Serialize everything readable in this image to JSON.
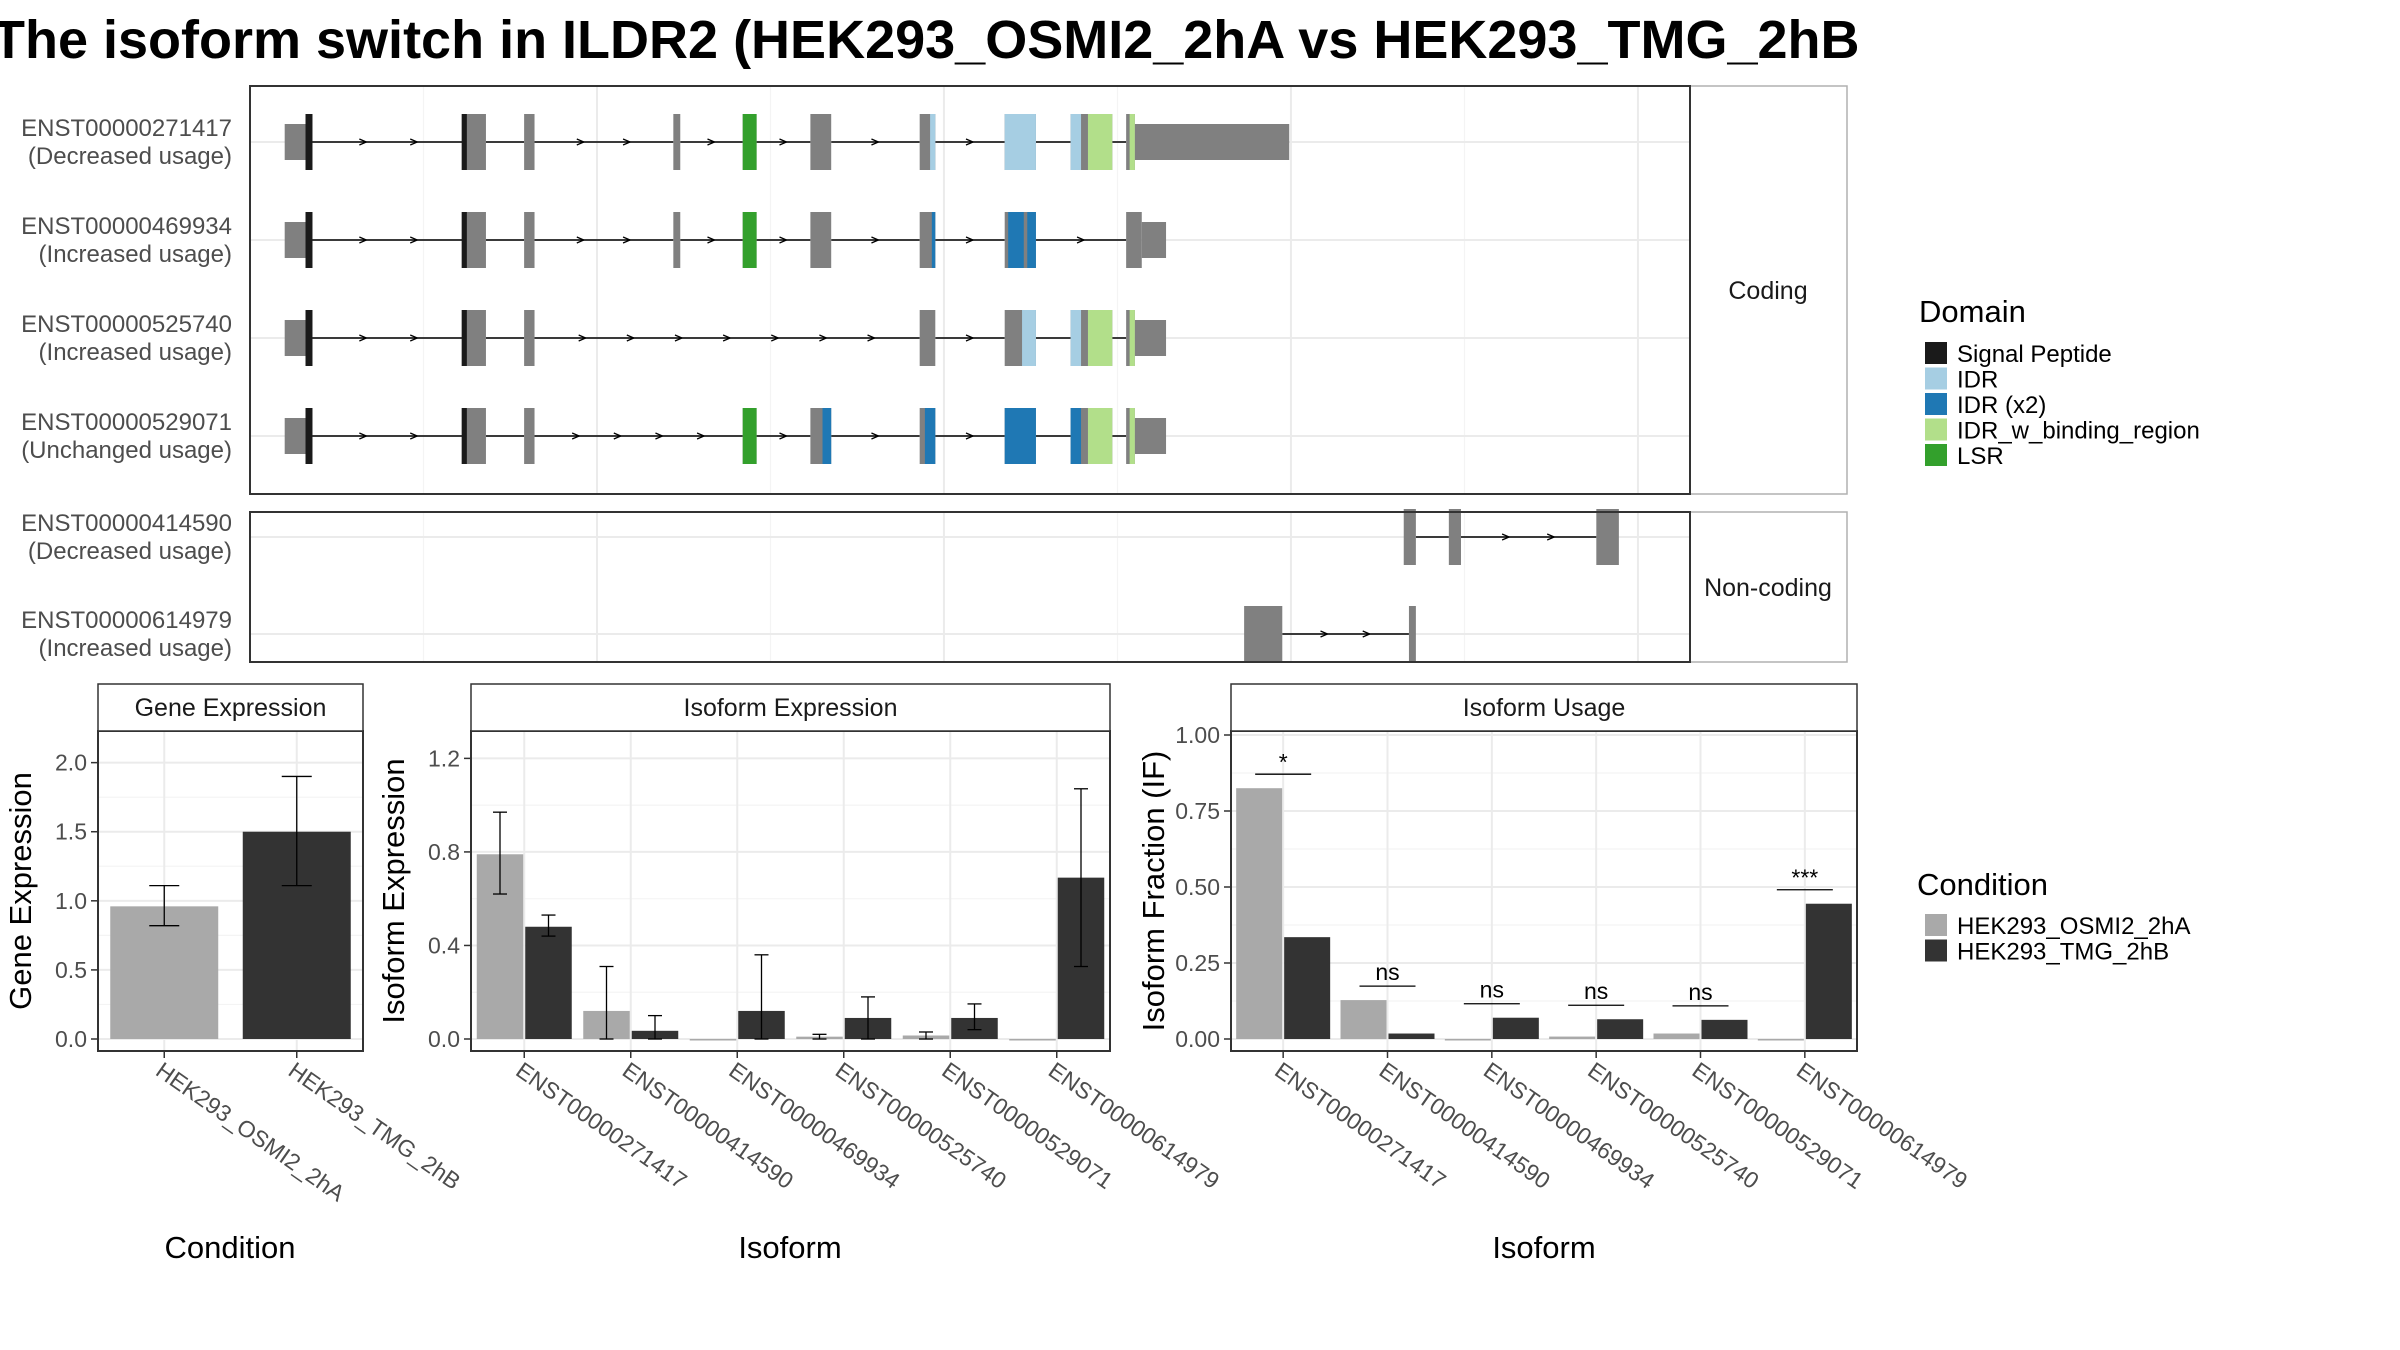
{
  "title": "The isoform switch in ILDR2 (HEK293_OSMI2_2hA vs HEK293_TMG_2hB",
  "colors": {
    "exon": "#808080",
    "intron": "#000000",
    "Signal Peptide": "#1a1a1a",
    "IDR": "#a6cee3",
    "IDR (x2)": "#1f78b4",
    "IDR_w_binding_region": "#b2df8a",
    "LSR": "#33a02c",
    "HEK293_OSMI2_2hA": "#a9a9a9",
    "HEK293_TMG_2hB": "#333333"
  },
  "structure": {
    "facets": [
      {
        "label": "Coding",
        "transcripts": [
          {
            "id": "ENST00000271417",
            "usage": "(Decreased usage)",
            "span": [
              2,
              57
            ],
            "exons": [
              [
                2,
                3.2,
                "utr"
              ],
              [
                3.2,
                3.6,
                "cds"
              ],
              [
                12.4,
                13.6,
                "cds"
              ],
              [
                15.8,
                16.4,
                "cds"
              ],
              [
                24.4,
                24.8,
                "cds"
              ],
              [
                28.4,
                29.2,
                "cds"
              ],
              [
                32.3,
                33.5,
                "cds"
              ],
              [
                38.6,
                39.5,
                "cds"
              ],
              [
                43.5,
                45.3,
                "cds"
              ],
              [
                47.3,
                48.3,
                "cds"
              ],
              [
                48.3,
                49.7,
                "cds"
              ],
              [
                50.5,
                51,
                "cds"
              ],
              [
                51,
                59.9,
                "utr"
              ]
            ],
            "domains": [
              [
                3.2,
                3.6,
                "Signal Peptide"
              ],
              [
                12.2,
                12.5,
                "Signal Peptide"
              ],
              [
                28.4,
                29.2,
                "LSR"
              ],
              [
                39.2,
                39.5,
                "IDR"
              ],
              [
                43.5,
                45.3,
                "IDR"
              ],
              [
                47.3,
                47.9,
                "IDR"
              ],
              [
                48.3,
                49.7,
                "IDR_w_binding_region"
              ],
              [
                50.7,
                51,
                "IDR_w_binding_region"
              ]
            ]
          },
          {
            "id": "ENST00000469934",
            "usage": "(Increased usage)",
            "span": [
              2,
              51
            ],
            "exons": [
              [
                2,
                3.2,
                "utr"
              ],
              [
                3.2,
                3.6,
                "cds"
              ],
              [
                12.4,
                13.6,
                "cds"
              ],
              [
                15.8,
                16.4,
                "cds"
              ],
              [
                24.4,
                24.8,
                "cds"
              ],
              [
                28.4,
                29.2,
                "cds"
              ],
              [
                32.3,
                33.5,
                "cds"
              ],
              [
                38.6,
                39.5,
                "cds"
              ],
              [
                43.5,
                45.3,
                "cds"
              ],
              [
                50.5,
                51.4,
                "cds"
              ],
              [
                51.4,
                52.8,
                "utr"
              ]
            ],
            "domains": [
              [
                3.2,
                3.6,
                "Signal Peptide"
              ],
              [
                12.2,
                12.5,
                "Signal Peptide"
              ],
              [
                28.4,
                29.2,
                "LSR"
              ],
              [
                39.3,
                39.5,
                "IDR (x2)"
              ],
              [
                43.7,
                44.6,
                "IDR (x2)"
              ],
              [
                44.8,
                45.3,
                "IDR (x2)"
              ]
            ]
          },
          {
            "id": "ENST00000525740",
            "usage": "(Increased usage)",
            "span": [
              2,
              51
            ],
            "exons": [
              [
                2,
                3.2,
                "utr"
              ],
              [
                3.2,
                3.6,
                "cds"
              ],
              [
                12.4,
                13.6,
                "cds"
              ],
              [
                15.8,
                16.4,
                "cds"
              ],
              [
                38.6,
                39.5,
                "cds"
              ],
              [
                43.5,
                45.3,
                "cds"
              ],
              [
                47.3,
                48.3,
                "cds"
              ],
              [
                48.3,
                49.7,
                "cds"
              ],
              [
                50.5,
                51,
                "cds"
              ],
              [
                51,
                52.8,
                "utr"
              ]
            ],
            "domains": [
              [
                3.2,
                3.6,
                "Signal Peptide"
              ],
              [
                12.2,
                12.5,
                "Signal Peptide"
              ],
              [
                44.5,
                45.3,
                "IDR"
              ],
              [
                47.3,
                47.9,
                "IDR"
              ],
              [
                48.3,
                49.7,
                "IDR_w_binding_region"
              ],
              [
                50.7,
                51,
                "IDR_w_binding_region"
              ]
            ]
          },
          {
            "id": "ENST00000529071",
            "usage": "(Unchanged usage)",
            "span": [
              2,
              51
            ],
            "exons": [
              [
                2,
                3.2,
                "utr"
              ],
              [
                3.2,
                3.6,
                "cds"
              ],
              [
                12.4,
                13.6,
                "cds"
              ],
              [
                15.8,
                16.4,
                "cds"
              ],
              [
                28.4,
                29.2,
                "cds"
              ],
              [
                32.3,
                33.5,
                "cds"
              ],
              [
                38.6,
                39.5,
                "cds"
              ],
              [
                43.5,
                45.3,
                "cds"
              ],
              [
                47.3,
                48.3,
                "cds"
              ],
              [
                48.3,
                49.7,
                "cds"
              ],
              [
                50.5,
                51,
                "cds"
              ],
              [
                51,
                52.8,
                "utr"
              ]
            ],
            "domains": [
              [
                3.2,
                3.6,
                "Signal Peptide"
              ],
              [
                12.2,
                12.5,
                "Signal Peptide"
              ],
              [
                28.4,
                29.2,
                "LSR"
              ],
              [
                33,
                33.5,
                "IDR (x2)"
              ],
              [
                38.9,
                39.5,
                "IDR (x2)"
              ],
              [
                43.5,
                45.3,
                "IDR (x2)"
              ],
              [
                47.3,
                47.9,
                "IDR (x2)"
              ],
              [
                48.3,
                49.7,
                "IDR_w_binding_region"
              ],
              [
                50.7,
                51,
                "IDR_w_binding_region"
              ]
            ]
          }
        ]
      },
      {
        "label": "Non-coding",
        "transcripts": [
          {
            "id": "ENST00000414590",
            "usage": "(Decreased usage)",
            "span": [
              66.5,
              79
            ],
            "exons": [
              [
                66.5,
                67.2,
                "nc"
              ],
              [
                69.1,
                69.8,
                "nc"
              ],
              [
                77.6,
                78.9,
                "nc"
              ]
            ],
            "domains": []
          },
          {
            "id": "ENST00000614979",
            "usage": "(Increased usage)",
            "span": [
              57.3,
              67.2
            ],
            "exons": [
              [
                57.3,
                59.5,
                "nc"
              ],
              [
                66.8,
                67.2,
                "nc"
              ]
            ],
            "domains": []
          }
        ]
      }
    ]
  },
  "chart_data": [
    {
      "type": "bar",
      "title": "Gene Expression",
      "xlabel": "Condition",
      "ylabel": "Gene Expression",
      "ylim": [
        0,
        2.2
      ],
      "yticks": [
        "0.0",
        "0.5",
        "1.0",
        "1.5",
        "2.0"
      ],
      "categories": [
        "HEK293_OSMI2_2hA",
        "HEK293_TMG_2hB"
      ],
      "series": [
        {
          "name": "HEK293_OSMI2_2hA",
          "values": [
            0.96,
            null
          ],
          "err_low": [
            0.82,
            null
          ],
          "err_high": [
            1.11,
            null
          ]
        },
        {
          "name": "HEK293_TMG_2hB",
          "values": [
            null,
            1.5
          ],
          "err_low": [
            null,
            1.11
          ],
          "err_high": [
            null,
            1.9
          ]
        }
      ]
    },
    {
      "type": "bar",
      "title": "Isoform Expression",
      "xlabel": "Isoform",
      "ylabel": "Isoform Expression",
      "ylim": [
        0,
        1.3
      ],
      "yticks": [
        "0.0",
        "0.4",
        "0.8",
        "1.2"
      ],
      "categories": [
        "ENST00000271417",
        "ENST00000414590",
        "ENST00000469934",
        "ENST00000525740",
        "ENST00000529071",
        "ENST00000614979"
      ],
      "series": [
        {
          "name": "HEK293_OSMI2_2hA",
          "values": [
            0.79,
            0.12,
            0.0,
            0.01,
            0.015,
            0.0
          ],
          "err_low": [
            0.62,
            0.0,
            0.0,
            0.0,
            0.0,
            0.0
          ],
          "err_high": [
            0.97,
            0.31,
            0.0,
            0.02,
            0.03,
            0.0
          ]
        },
        {
          "name": "HEK293_TMG_2hB",
          "values": [
            0.48,
            0.035,
            0.12,
            0.09,
            0.09,
            0.69
          ],
          "err_low": [
            0.44,
            0.0,
            0.0,
            0.0,
            0.04,
            0.31
          ],
          "err_high": [
            0.53,
            0.1,
            0.36,
            0.18,
            0.15,
            1.07
          ]
        }
      ]
    },
    {
      "type": "bar",
      "title": "Isoform Usage",
      "xlabel": "Isoform",
      "ylabel": "Isoform Fraction (IF)",
      "ylim": [
        0,
        1.0
      ],
      "yticks": [
        "0.00",
        "0.25",
        "0.50",
        "0.75",
        "1.00"
      ],
      "categories": [
        "ENST00000271417",
        "ENST00000414590",
        "ENST00000469934",
        "ENST00000525740",
        "ENST00000529071",
        "ENST00000614979"
      ],
      "series": [
        {
          "name": "HEK293_OSMI2_2hA",
          "values": [
            0.825,
            0.128,
            0.0,
            0.008,
            0.018,
            0.0
          ]
        },
        {
          "name": "HEK293_TMG_2hB",
          "values": [
            0.335,
            0.018,
            0.07,
            0.065,
            0.063,
            0.445
          ]
        }
      ],
      "significance": [
        "*",
        "ns",
        "ns",
        "ns",
        "ns",
        "***"
      ]
    }
  ],
  "legends": {
    "domain": {
      "title": "Domain",
      "items": [
        "Signal Peptide",
        "IDR",
        "IDR (x2)",
        "IDR_w_binding_region",
        "LSR"
      ]
    },
    "condition": {
      "title": "Condition",
      "items": [
        "HEK293_OSMI2_2hA",
        "HEK293_TMG_2hB"
      ]
    }
  }
}
